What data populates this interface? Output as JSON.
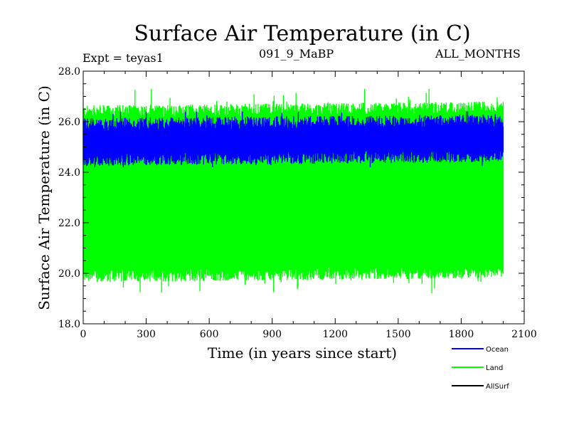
{
  "chart_data": {
    "type": "line",
    "title": "Surface Air Temperature (in C)",
    "subtitle_left": "Expt = teyas1",
    "subtitle_center": "091_9_MaBP",
    "subtitle_right": "ALL_MONTHS",
    "xlabel": "Time (in years since start)",
    "ylabel": "Surface Air Temperature (in C)",
    "xlim": [
      0,
      2100
    ],
    "ylim": [
      18.0,
      28.0
    ],
    "xticks": [
      0,
      300,
      600,
      900,
      1200,
      1500,
      1800,
      2100
    ],
    "xtick_labels": [
      "0",
      "300",
      "600",
      "900",
      "1200",
      "1500",
      "1800",
      "2100"
    ],
    "yticks": [
      18.0,
      20.0,
      22.0,
      24.0,
      26.0,
      28.0
    ],
    "ytick_labels": [
      "18.0",
      "20.0",
      "22.0",
      "24.0",
      "26.0",
      "28.0"
    ],
    "data_x_range": [
      0,
      2000
    ],
    "series": [
      {
        "name": "Land",
        "color": "#00ff00",
        "envelope": {
          "low_typical": 19.9,
          "high_typical": 26.4,
          "min": 19.2,
          "max": 27.3
        }
      },
      {
        "name": "Ocean",
        "color": "#0000ff",
        "envelope": {
          "low_typical": 24.5,
          "high_typical": 25.9,
          "min": 24.2,
          "max": 26.4
        }
      },
      {
        "name": "AllSurf",
        "color": "#000000",
        "envelope": null
      }
    ],
    "legend": [
      {
        "label": "Ocean",
        "color": "#0000ff"
      },
      {
        "label": "Land",
        "color": "#00ff00"
      },
      {
        "label": "AllSurf",
        "color": "#000000"
      }
    ]
  }
}
